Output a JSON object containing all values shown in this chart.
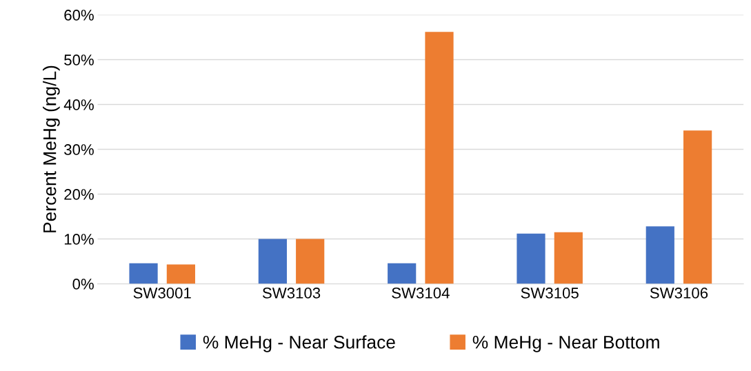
{
  "chart_data": {
    "type": "bar",
    "ylabel": "Percent MeHg (ng/L)",
    "categories": [
      "SW3001",
      "SW3103",
      "SW3104",
      "SW3105",
      "SW3106"
    ],
    "series": [
      {
        "name": "% MeHg - Near Surface",
        "color": "#4472c4",
        "values": [
          4.6,
          10.0,
          4.6,
          11.2,
          12.8
        ]
      },
      {
        "name": "% MeHg - Near Bottom",
        "color": "#ed7d31",
        "values": [
          4.3,
          10.0,
          56.2,
          11.5,
          34.2
        ]
      }
    ],
    "ylim": [
      0,
      60
    ],
    "yticks": [
      {
        "value": 0,
        "label": "0%"
      },
      {
        "value": 10,
        "label": "10%"
      },
      {
        "value": 20,
        "label": "20%"
      },
      {
        "value": 30,
        "label": "30%"
      },
      {
        "value": 40,
        "label": "40%"
      },
      {
        "value": 50,
        "label": "50%"
      },
      {
        "value": 60,
        "label": "60%"
      }
    ],
    "grid": "y",
    "legend": "bottom"
  }
}
